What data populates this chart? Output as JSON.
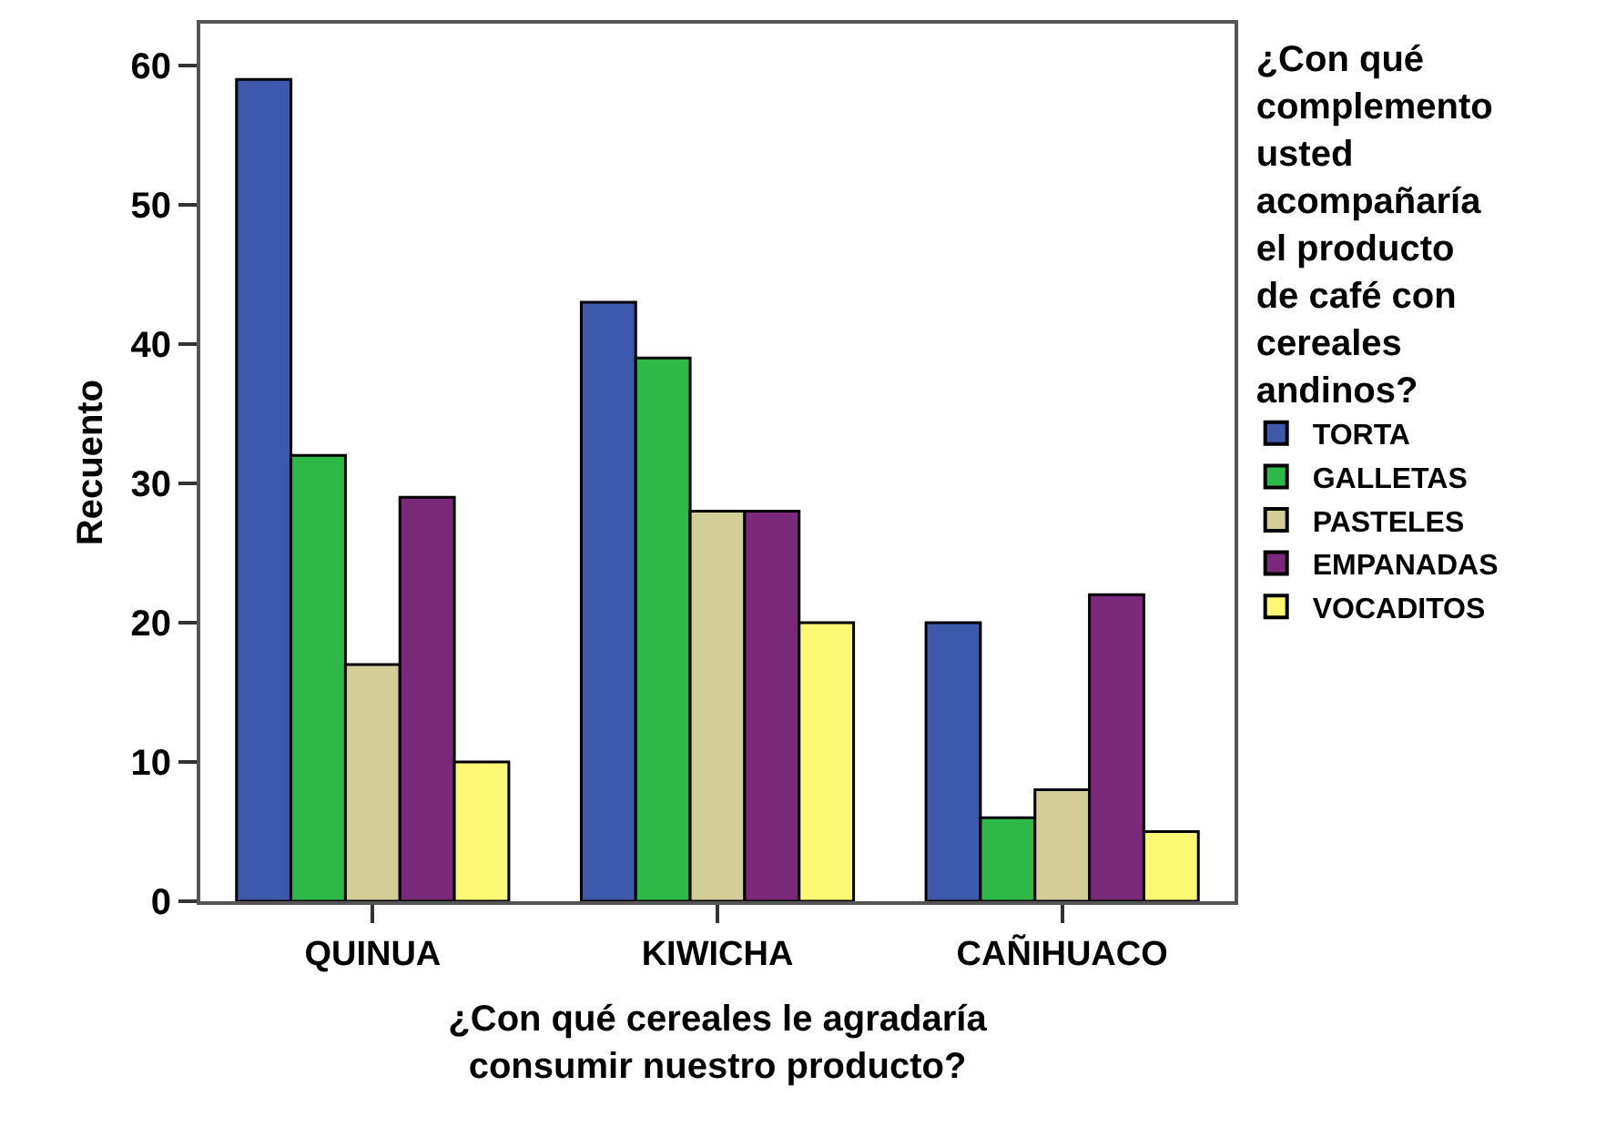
{
  "chart_data": {
    "type": "bar",
    "xlabel": "¿Con qué cereales le agradaría consumir nuestro producto?",
    "ylabel": "Recuento",
    "legend_title": "¿Con qué complemento usted acompañaría el producto de café con cereales andinos?",
    "categories": [
      "QUINUA",
      "KIWICHA",
      "CAÑIHUACO"
    ],
    "series": [
      {
        "name": "TORTA",
        "color": "#3e58ac",
        "values": [
          59,
          43,
          20
        ]
      },
      {
        "name": "GALLETAS",
        "color": "#2eb848",
        "values": [
          32,
          39,
          6
        ]
      },
      {
        "name": "PASTELES",
        "color": "#d3ce97",
        "values": [
          17,
          28,
          8
        ]
      },
      {
        "name": "EMPANADAS",
        "color": "#7a287a",
        "values": [
          29,
          28,
          22
        ]
      },
      {
        "name": "VOCADITOS",
        "color": "#fbf873",
        "values": [
          10,
          20,
          5
        ]
      }
    ],
    "ylim": [
      0,
      63
    ],
    "yticks": [
      0,
      10,
      20,
      30,
      40,
      50,
      60
    ],
    "legend": "right"
  }
}
